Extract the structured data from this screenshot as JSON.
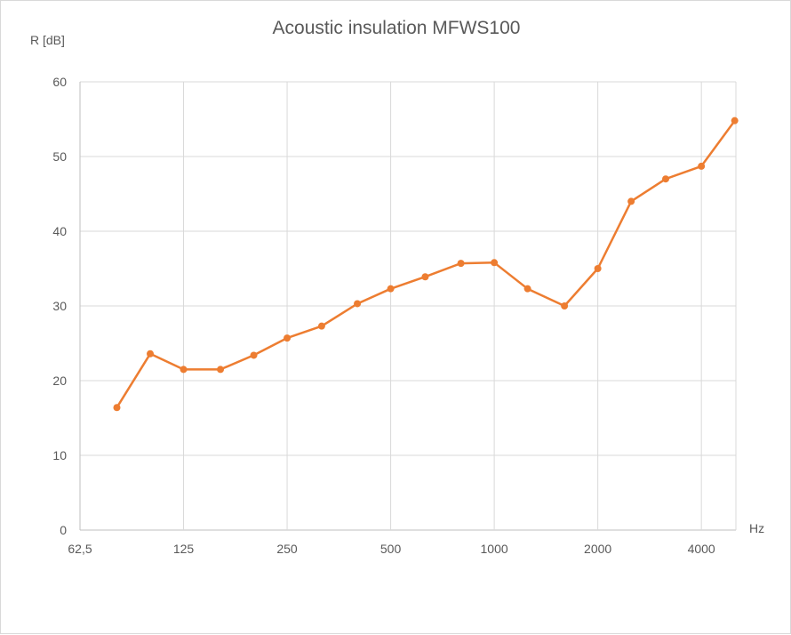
{
  "chart_data": {
    "type": "line",
    "title": "Acoustic insulation MFWS100",
    "ylabel": "R [dB]",
    "xlabel": "Hz",
    "x_scale": "log",
    "xlim": [
      62.5,
      5040
    ],
    "ylim": [
      0,
      60
    ],
    "yticks": [
      0,
      10,
      20,
      30,
      40,
      50,
      60
    ],
    "xticks": [
      62.5,
      125,
      250,
      500,
      1000,
      2000,
      4000
    ],
    "xtick_labels": [
      "62,5",
      "125",
      "250",
      "500",
      "1000",
      "2000",
      "4000"
    ],
    "grid": true,
    "color": "#ed7d31",
    "series": [
      {
        "x": [
          80,
          100,
          125,
          160,
          200,
          250,
          315,
          400,
          500,
          630,
          800,
          1000,
          1250,
          1600,
          2000,
          2500,
          3150,
          4000,
          5000
        ],
        "values": [
          16.4,
          23.6,
          21.5,
          21.5,
          23.4,
          25.7,
          27.3,
          30.3,
          32.3,
          33.9,
          35.7,
          35.8,
          32.3,
          30.0,
          35.0,
          44.0,
          47.0,
          48.7,
          54.8
        ]
      }
    ]
  }
}
